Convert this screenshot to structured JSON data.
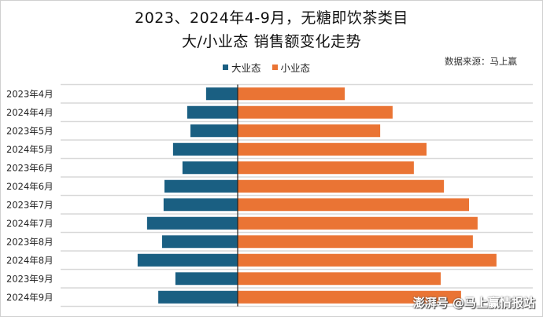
{
  "chart_data": {
    "type": "bar",
    "orientation": "horizontal-diverging",
    "title": "2023、2024年4-9月，无糖即饮茶类目",
    "subtitle": "大/小业态 销售额变化走势",
    "source": "数据来源：马上赢",
    "xlabel": "",
    "ylabel": "",
    "xlim": [
      -52,
      100
    ],
    "grid": true,
    "legend_position": "top",
    "categories": [
      "2023年4月",
      "2024年4月",
      "2023年5月",
      "2024年5月",
      "2023年6月",
      "2024年6月",
      "2023年7月",
      "2024年7月",
      "2023年8月",
      "2024年8月",
      "2023年9月",
      "2024年9月"
    ],
    "series": [
      {
        "name": "大业态",
        "color": "#1a5f82",
        "direction": "left",
        "values": [
          10.7,
          17.1,
          16.0,
          21.9,
          18.7,
          24.8,
          25.1,
          30.7,
          25.6,
          33.9,
          21.1,
          26.9
        ]
      },
      {
        "name": "小业态",
        "color": "#ea7434",
        "direction": "right",
        "values": [
          36.3,
          52.5,
          48.3,
          64.0,
          59.7,
          69.9,
          78.4,
          81.3,
          79.7,
          87.7,
          68.8,
          75.7
        ]
      }
    ]
  },
  "watermark": {
    "brand": "澎湃号",
    "handle": "@马上赢情报站"
  }
}
